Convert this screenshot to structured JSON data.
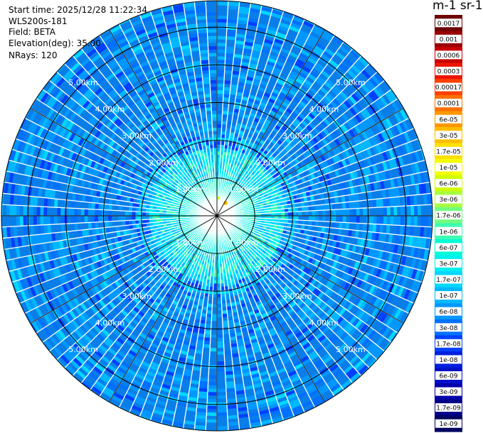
{
  "info": {
    "start_time": "Start time: 2025/12/28 11:22:34",
    "instrument": "WLS200s-181",
    "field": "Field: BETA",
    "elevation": "Elevation(deg): 35.00",
    "nrays": "NRays: 120"
  },
  "colorbar": {
    "title": "m-1 sr-1",
    "ticks": [
      "0.0017",
      "0.001",
      "0.0006",
      "0.0003",
      "0.00017",
      "0.0001",
      "6e-05",
      "3e-05",
      "1.7e-05",
      "1e-05",
      "6e-06",
      "3e-06",
      "1.7e-06",
      "1e-06",
      "6e-07",
      "3e-07",
      "1.7e-07",
      "1e-07",
      "6e-08",
      "3e-08",
      "1.7e-08",
      "1e-08",
      "6e-09",
      "3e-09",
      "1.7e-09",
      "1e-09"
    ],
    "colors": [
      "#6e0000",
      "#9a0000",
      "#c80000",
      "#ee1600",
      "#ff4000",
      "#ff7000",
      "#ff9800",
      "#ffbe00",
      "#ffe000",
      "#f4ff00",
      "#d0ff00",
      "#a8ff40",
      "#70ff80",
      "#40ffb0",
      "#00ffd8",
      "#00f0f0",
      "#00d8ff",
      "#00b8ff",
      "#0098ff",
      "#0070ff",
      "#0040ff",
      "#0020e0",
      "#0010c8",
      "#0000aa",
      "#000088",
      "#000060"
    ]
  },
  "chart_data": {
    "type": "ppi",
    "field": "BETA",
    "elevation_deg": 35.0,
    "n_rays": 120,
    "range_rings_km": [
      1,
      2,
      3,
      4,
      5
    ],
    "range_labels": [
      "1.00km",
      "2.00km",
      "3.00km",
      "4.00km",
      "5.00km"
    ],
    "max_range_km": 5.7,
    "radials_deg": [
      0,
      30,
      60,
      90,
      120,
      150,
      180,
      210,
      240,
      270,
      300,
      330
    ],
    "scale": "log",
    "value_range": [
      1e-09,
      0.0017
    ],
    "unit": "m-1 sr-1",
    "dominant_values": {
      "near_field_0_2km": "1e-07 to 1.7e-06",
      "far_field_2_5.7km": "1e-08 to 6e-08",
      "ring_at_2km": "6e-08"
    }
  }
}
